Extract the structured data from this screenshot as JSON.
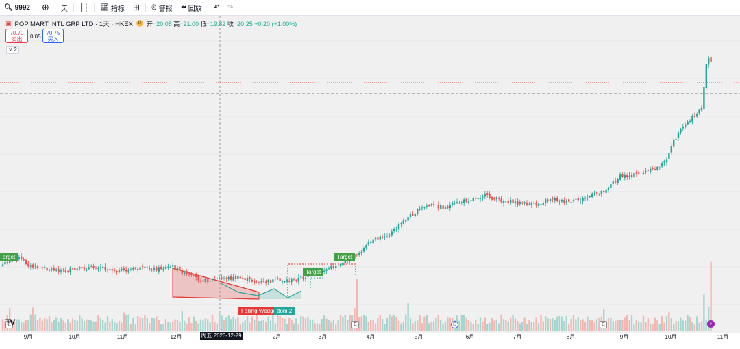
{
  "toolbar": {
    "symbol": "9992",
    "interval": "天",
    "indicators_label": "指标",
    "alert_label": "警报",
    "replay_label": "回放"
  },
  "legend": {
    "title": "POP MART INTL GRP LTD · 1天 · HKEX",
    "badge": "D",
    "open_label": "开",
    "open": "=20.05",
    "high_label": "高",
    "high": "=21.00",
    "low_label": "低",
    "low": "=19.82",
    "close_label": "收",
    "close": "=20.25",
    "change": "+0.20 (+1.00%)"
  },
  "trade": {
    "sell_price": "70.70",
    "sell_label": "卖出",
    "spread": "0.05",
    "buy_price": "70.75",
    "buy_label": "买入",
    "collapse_count": "2"
  },
  "annotations": {
    "target_left": "arget",
    "target_1": "Target",
    "target_2": "Target",
    "falling_wedge": "Falling Wedge",
    "double_bottom": "ttom 2",
    "event_e": "E",
    "event_d": "D",
    "crosshair_date": "周五 2023-12-29"
  },
  "axis": {
    "months": [
      "9月",
      "10月",
      "11月",
      "12月",
      "2月",
      "3月",
      "4月",
      "5月",
      "6月",
      "7月",
      "8月",
      "9月",
      "10月",
      "11月"
    ]
  },
  "colors": {
    "up": "#26a69a",
    "down": "#ef5350",
    "background": "#f0f0f0",
    "wedge": "#e53935",
    "target": "#43a047"
  },
  "chart_data": {
    "type": "candlestick",
    "symbol": "9992",
    "exchange": "HKEX",
    "interval": "1D",
    "last_bar": {
      "open": 20.05,
      "high": 21.0,
      "low": 19.82,
      "close": 20.25
    },
    "series": [
      {
        "name": "price",
        "points": [
          [
            0,
            0.06
          ],
          [
            10,
            0.08
          ],
          [
            25,
            0.1
          ],
          [
            45,
            0.06
          ],
          [
            70,
            0.05
          ],
          [
            95,
            0.04
          ],
          [
            120,
            0.05
          ],
          [
            145,
            0.06
          ],
          [
            175,
            0.04
          ],
          [
            200,
            0.05
          ],
          [
            230,
            0.05
          ],
          [
            252,
            0.06
          ],
          [
            275,
            0.02
          ],
          [
            300,
            0.0
          ],
          [
            325,
            0.01
          ],
          [
            355,
            0.01
          ],
          [
            378,
            -0.01
          ],
          [
            400,
            0.0
          ],
          [
            425,
            0.0
          ],
          [
            450,
            0.02
          ],
          [
            470,
            0.04
          ],
          [
            495,
            0.07
          ],
          [
            520,
            0.11
          ],
          [
            545,
            0.17
          ],
          [
            570,
            0.2
          ],
          [
            600,
            0.28
          ],
          [
            625,
            0.32
          ],
          [
            650,
            0.31
          ],
          [
            680,
            0.34
          ],
          [
            705,
            0.36
          ],
          [
            730,
            0.34
          ],
          [
            755,
            0.33
          ],
          [
            780,
            0.32
          ],
          [
            805,
            0.35
          ],
          [
            830,
            0.33
          ],
          [
            855,
            0.35
          ],
          [
            880,
            0.38
          ],
          [
            905,
            0.44
          ],
          [
            930,
            0.45
          ],
          [
            955,
            0.47
          ],
          [
            970,
            0.5
          ],
          [
            985,
            0.6
          ],
          [
            1000,
            0.66
          ],
          [
            1015,
            0.7
          ],
          [
            1025,
            0.74
          ],
          [
            1032,
            0.95
          ],
          [
            1038,
            0.92
          ]
        ]
      }
    ],
    "volume_peaks": [
      [
        15,
        0.35
      ],
      [
        48,
        0.3
      ],
      [
        105,
        0.2
      ],
      [
        180,
        0.28
      ],
      [
        265,
        0.3
      ],
      [
        320,
        0.25
      ],
      [
        375,
        0.3
      ],
      [
        440,
        0.22
      ],
      [
        520,
        0.8
      ],
      [
        595,
        0.4
      ],
      [
        880,
        0.38
      ],
      [
        975,
        0.35
      ],
      [
        1027,
        0.5
      ],
      [
        1037,
        1.0
      ]
    ],
    "patterns": [
      "Falling Wedge",
      "Double Bottom",
      "Target",
      "Target",
      "Target"
    ]
  }
}
